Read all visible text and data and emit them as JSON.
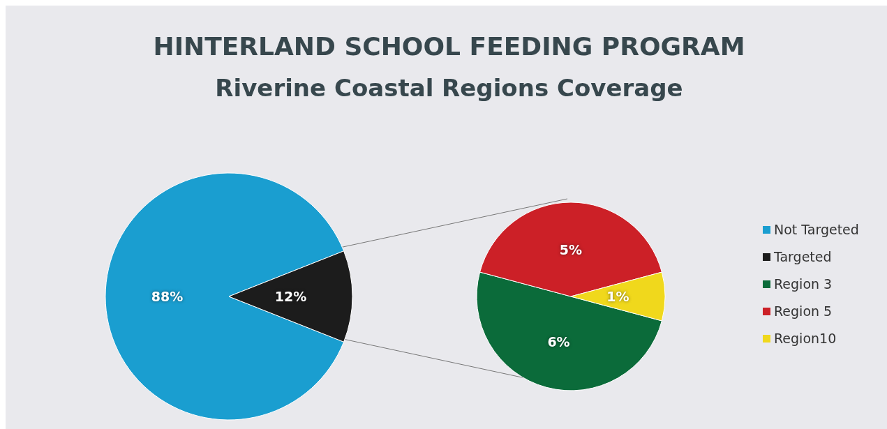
{
  "chart_data": [
    {
      "type": "pie",
      "title": "HINTERLAND SCHOOL FEEDING PROGRAM",
      "subtitle": "Riverine Coastal Regions Coverage",
      "categories": [
        "Not Targeted",
        "Targeted"
      ],
      "values": [
        88,
        12
      ],
      "colors": [
        "#1a9ed0",
        "#1c1c1c"
      ],
      "value_labels": [
        "88%",
        "12%"
      ],
      "legend": "right"
    },
    {
      "type": "pie",
      "categories": [
        "Region 3",
        "Region 5",
        "Region10"
      ],
      "values": [
        6,
        5,
        1
      ],
      "colors": [
        "#0b6b3a",
        "#cc2027",
        "#f0d81c"
      ],
      "value_labels": [
        "6%",
        "5%",
        "1%"
      ],
      "legend": "right"
    }
  ]
}
